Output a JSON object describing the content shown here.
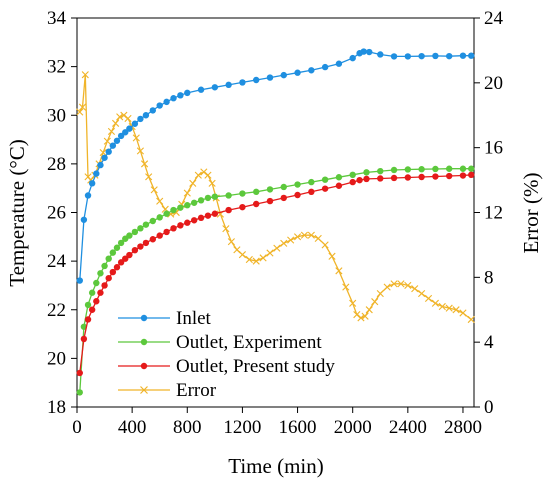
{
  "chart_data": {
    "type": "line",
    "title": "",
    "xlabel": "Time (min)",
    "ylabel": "Temperature (°C)",
    "y2label": "Error (%)",
    "xlim": [
      0,
      2880
    ],
    "ylim": [
      18,
      34
    ],
    "y2lim": [
      0,
      24
    ],
    "xticks": [
      "0",
      "400",
      "800",
      "1200",
      "1600",
      "2000",
      "2400",
      "2800"
    ],
    "yticks": [
      "18",
      "20",
      "22",
      "24",
      "26",
      "28",
      "30",
      "32",
      "34"
    ],
    "y2ticks": [
      "0",
      "4",
      "8",
      "12",
      "16",
      "20",
      "24"
    ],
    "grid": false,
    "legend_position": "bottom-left",
    "series": [
      {
        "name": "Inlet",
        "axis": "left",
        "color": "#1f8fe0",
        "marker": "dot",
        "x": [
          20,
          50,
          80,
          110,
          140,
          170,
          200,
          230,
          260,
          290,
          320,
          350,
          380,
          420,
          460,
          500,
          550,
          600,
          650,
          700,
          750,
          800,
          900,
          1000,
          1100,
          1200,
          1300,
          1400,
          1500,
          1600,
          1700,
          1800,
          1900,
          2000,
          2050,
          2080,
          2120,
          2200,
          2300,
          2400,
          2500,
          2600,
          2700,
          2800,
          2860
        ],
        "y": [
          23.2,
          25.7,
          26.7,
          27.2,
          27.6,
          27.95,
          28.25,
          28.5,
          28.75,
          28.95,
          29.15,
          29.3,
          29.45,
          29.65,
          29.85,
          30.0,
          30.2,
          30.4,
          30.55,
          30.7,
          30.82,
          30.92,
          31.05,
          31.15,
          31.25,
          31.35,
          31.45,
          31.55,
          31.65,
          31.75,
          31.85,
          31.98,
          32.12,
          32.35,
          32.55,
          32.62,
          32.6,
          32.5,
          32.42,
          32.42,
          32.43,
          32.44,
          32.43,
          32.45,
          32.45
        ]
      },
      {
        "name": "Outlet, Experiment",
        "axis": "left",
        "color": "#5cc83c",
        "marker": "dot",
        "x": [
          20,
          50,
          80,
          110,
          140,
          170,
          200,
          230,
          260,
          290,
          320,
          350,
          380,
          420,
          460,
          500,
          550,
          600,
          650,
          700,
          750,
          800,
          850,
          900,
          950,
          1000,
          1100,
          1200,
          1300,
          1400,
          1500,
          1600,
          1700,
          1800,
          1900,
          2000,
          2100,
          2200,
          2300,
          2400,
          2500,
          2600,
          2700,
          2800,
          2860
        ],
        "y": [
          18.6,
          21.3,
          22.2,
          22.7,
          23.1,
          23.5,
          23.8,
          24.1,
          24.35,
          24.55,
          24.75,
          24.92,
          25.05,
          25.2,
          25.35,
          25.5,
          25.65,
          25.8,
          25.95,
          26.1,
          26.2,
          26.3,
          26.4,
          26.5,
          26.6,
          26.65,
          26.7,
          26.78,
          26.85,
          26.95,
          27.05,
          27.15,
          27.25,
          27.35,
          27.45,
          27.55,
          27.65,
          27.7,
          27.75,
          27.77,
          27.78,
          27.79,
          27.8,
          27.8,
          27.8
        ]
      },
      {
        "name": "Outlet, Present study",
        "axis": "left",
        "color": "#e51a1a",
        "marker": "dot",
        "x": [
          20,
          50,
          80,
          110,
          140,
          170,
          200,
          230,
          260,
          290,
          320,
          350,
          380,
          420,
          460,
          500,
          550,
          600,
          650,
          700,
          750,
          800,
          850,
          900,
          950,
          1000,
          1100,
          1200,
          1300,
          1400,
          1500,
          1600,
          1700,
          1800,
          1900,
          2000,
          2050,
          2100,
          2200,
          2300,
          2400,
          2500,
          2600,
          2700,
          2800,
          2860
        ],
        "y": [
          19.4,
          20.8,
          21.6,
          22.0,
          22.35,
          22.7,
          23.0,
          23.3,
          23.55,
          23.75,
          23.95,
          24.1,
          24.25,
          24.45,
          24.6,
          24.75,
          24.9,
          25.05,
          25.2,
          25.35,
          25.47,
          25.58,
          25.68,
          25.78,
          25.87,
          25.95,
          26.1,
          26.22,
          26.35,
          26.47,
          26.6,
          26.72,
          26.85,
          26.98,
          27.1,
          27.25,
          27.33,
          27.38,
          27.4,
          27.42,
          27.44,
          27.46,
          27.48,
          27.5,
          27.52,
          27.55
        ]
      },
      {
        "name": "Error",
        "axis": "right",
        "color": "#f0b429",
        "marker": "x",
        "x": [
          20,
          40,
          60,
          80,
          100,
          130,
          160,
          190,
          220,
          250,
          280,
          310,
          340,
          370,
          400,
          430,
          460,
          490,
          520,
          560,
          600,
          640,
          680,
          720,
          760,
          800,
          840,
          880,
          920,
          950,
          980,
          1010,
          1040,
          1080,
          1120,
          1160,
          1200,
          1250,
          1300,
          1350,
          1400,
          1450,
          1500,
          1550,
          1600,
          1650,
          1700,
          1750,
          1800,
          1850,
          1900,
          1950,
          2000,
          2030,
          2060,
          2090,
          2120,
          2160,
          2200,
          2250,
          2300,
          2350,
          2400,
          2450,
          2500,
          2550,
          2600,
          2650,
          2700,
          2750,
          2800,
          2860
        ],
        "y": [
          18.2,
          18.5,
          20.5,
          14.2,
          14.0,
          14.3,
          15.0,
          15.7,
          16.4,
          17.0,
          17.5,
          17.9,
          18.0,
          17.8,
          17.3,
          16.6,
          15.8,
          15.0,
          14.2,
          13.4,
          12.7,
          12.2,
          11.9,
          12.0,
          12.5,
          13.2,
          13.8,
          14.3,
          14.5,
          14.3,
          13.8,
          12.9,
          11.9,
          11.0,
          10.2,
          9.7,
          9.4,
          9.1,
          9.0,
          9.2,
          9.5,
          9.8,
          10.1,
          10.3,
          10.5,
          10.6,
          10.6,
          10.4,
          10.0,
          9.3,
          8.4,
          7.4,
          6.4,
          5.7,
          5.5,
          5.6,
          6.0,
          6.5,
          7.0,
          7.4,
          7.6,
          7.6,
          7.5,
          7.3,
          7.0,
          6.7,
          6.4,
          6.2,
          6.1,
          6.0,
          5.8,
          5.4
        ]
      }
    ]
  }
}
